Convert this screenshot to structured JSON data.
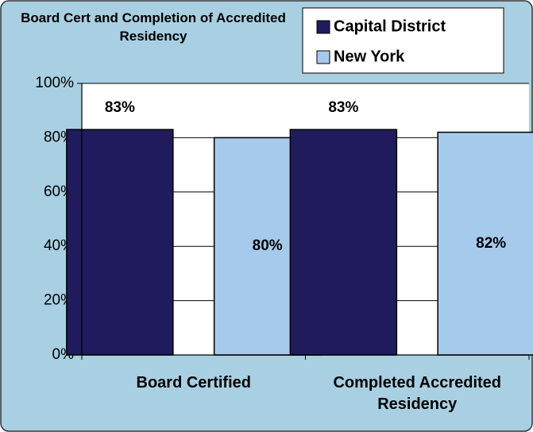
{
  "chart_data": {
    "type": "bar",
    "title": "Board Cert and Completion of Accredited Residency",
    "categories": [
      "Board Certified",
      "Completed Accredited Residency"
    ],
    "series": [
      {
        "name": "Capital District",
        "color": "#1f1b5c",
        "values": [
          83,
          83
        ],
        "value_labels": [
          "83%",
          "83%"
        ]
      },
      {
        "name": "New York",
        "color": "#a6caec",
        "values": [
          80,
          82
        ],
        "value_labels": [
          "80%",
          "82%"
        ]
      }
    ],
    "ylim": [
      0,
      100
    ],
    "yticks": [
      {
        "value": 0,
        "label": "0%"
      },
      {
        "value": 20,
        "label": "20%"
      },
      {
        "value": 40,
        "label": "40%"
      },
      {
        "value": 60,
        "label": "60%"
      },
      {
        "value": 80,
        "label": "80%"
      },
      {
        "value": 100,
        "label": "100%"
      }
    ],
    "grid": true,
    "legend": "top-right"
  }
}
